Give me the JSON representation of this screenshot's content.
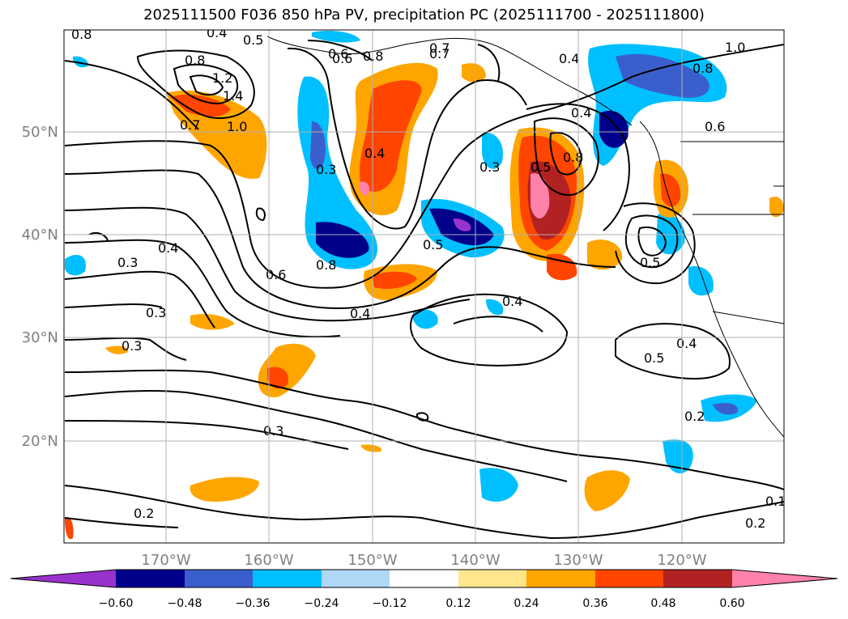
{
  "title": "2025111500 F036 850 hPa PV, precipitation PC (2025111700 - 2025111800)",
  "axes": {
    "lat_ticks": [
      "50°N",
      "40°N",
      "30°N",
      "20°N"
    ],
    "lon_ticks": [
      "170°W",
      "160°W",
      "150°W",
      "140°W",
      "130°W",
      "120°W"
    ]
  },
  "colorbar": {
    "labels": [
      "−0.60",
      "−0.48",
      "−0.36",
      "−0.24",
      "−0.12",
      "0.12",
      "0.24",
      "0.36",
      "0.48",
      "0.60"
    ],
    "colors": [
      "#9932cc",
      "#00008b",
      "#3a5fcd",
      "#00bfff",
      "#add8f6",
      "#ffffff",
      "#ffe68c",
      "#ffa500",
      "#ff4500",
      "#b22222",
      "#ff82ab"
    ]
  },
  "contour_labels": [
    "0.8",
    "0.4",
    "0.5",
    "0.6",
    "0.8",
    "0.7",
    "1.0",
    "0.8",
    "1.2",
    "1.4",
    "0.7",
    "1.0",
    "0.4",
    "0.3",
    "0.3",
    "0.4",
    "0.8",
    "0.6",
    "0.3",
    "0.4",
    "0.5",
    "0.5",
    "0.4",
    "0.3",
    "0.4",
    "0.8",
    "0.5",
    "0.3",
    "0.2",
    "0.2",
    "0.2",
    "0.1",
    "0.6",
    "0.7",
    "0.3",
    "0.6",
    "0.8",
    "0.5",
    "0.4",
    "0.4"
  ]
}
